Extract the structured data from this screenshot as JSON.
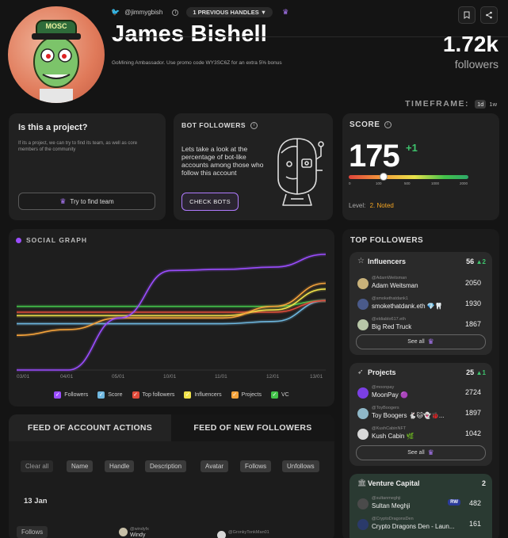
{
  "profile": {
    "handle": "@jimmygbish",
    "prev_handles": "1 PREVIOUS HANDLES ▼",
    "name": "James Bishell",
    "bio": "GoMining Ambassador. Use promo code WY3SC6Z for an extra 5% bonus",
    "followers_count": "1.72k",
    "followers_label": "followers",
    "avatar_text": "MOSC"
  },
  "timeframe": {
    "label": "TIMEFRAME:",
    "options": [
      "1d",
      "1w"
    ]
  },
  "project_card": {
    "title": "Is this a project?",
    "desc": "If its a project, we can try to find its team, as well as core members of the community",
    "button": "Try to find team"
  },
  "bot_card": {
    "title": "BOT FOLLOWERS",
    "desc": "Lets take a look at the percentage of bot-like accounts among those who follow this account",
    "button": "CHECK BOTS"
  },
  "score": {
    "title": "SCORE",
    "value": "175",
    "delta": "+1",
    "ticks": [
      "0",
      "100",
      "500",
      "1000",
      "2000"
    ],
    "level_label": "Level:",
    "level_value": "2. Noted",
    "fraction": 0.29
  },
  "chart_data": {
    "type": "line",
    "title": "SOCIAL GRAPH",
    "x": [
      "03/01",
      "04/01",
      "05/01",
      "10/01",
      "11/01",
      "12/01",
      "13/01"
    ],
    "series": [
      {
        "name": "Followers",
        "color": "#9b4dff",
        "values": [
          0.0,
          0.0,
          0.45,
          0.86,
          0.87,
          0.89,
          1.0
        ]
      },
      {
        "name": "Score",
        "color": "#6fb8e0",
        "values": [
          0.4,
          0.4,
          0.4,
          0.4,
          0.4,
          0.42,
          0.6
        ]
      },
      {
        "name": "Top followers",
        "color": "#e14b3b",
        "values": [
          0.5,
          0.5,
          0.5,
          0.5,
          0.5,
          0.5,
          0.6
        ]
      },
      {
        "name": "Influencers",
        "color": "#f0e24a",
        "values": [
          0.47,
          0.47,
          0.47,
          0.47,
          0.47,
          0.52,
          0.7
        ]
      },
      {
        "name": "Projects",
        "color": "#f5a33b",
        "values": [
          0.3,
          0.35,
          0.45,
          0.45,
          0.45,
          0.55,
          0.75
        ]
      },
      {
        "name": "VC",
        "color": "#43c24a",
        "values": [
          0.55,
          0.55,
          0.55,
          0.55,
          0.55,
          0.55,
          0.6
        ]
      }
    ]
  },
  "feed": {
    "tabs": [
      "FEED OF ACCOUNT ACTIONS",
      "FEED OF NEW FOLLOWERS"
    ],
    "filters": [
      "Clear all",
      "Name",
      "Handle",
      "Description",
      "Avatar",
      "Follows",
      "Unfollows"
    ],
    "date": "13 Jan",
    "row_tag": "Follows",
    "row_items": [
      {
        "handle": "@windyfx",
        "name": "Windy"
      },
      {
        "handle": "@GronkyTonkMan01",
        "name": ""
      }
    ]
  },
  "top_followers": {
    "title": "TOP FOLLOWERS",
    "see_all": "See all",
    "groups": [
      {
        "name": "Influencers",
        "count": "56",
        "delta": "▲2",
        "items": [
          {
            "handle": "@AdamWeitsman",
            "name": "Adam Weitsman",
            "value": "2050",
            "color": "#c9b27a"
          },
          {
            "handle": "@smokethatdank1",
            "name": "smokethatdank.eth 💎🦷",
            "value": "1930",
            "color": "#4a5a8a"
          },
          {
            "handle": "@eldiablo617.eth",
            "name": "Big Red Truck",
            "value": "1867",
            "color": "#b8c7a8"
          }
        ]
      },
      {
        "name": "Projects",
        "count": "25",
        "delta": "▲1",
        "items": [
          {
            "handle": "@moonpay",
            "name": "MoonPay 🟣",
            "value": "2724",
            "color": "#7b3fe4"
          },
          {
            "handle": "@ToyBoogers",
            "name": "Toy Boogers 🐇🐱👻🐞...",
            "value": "1897",
            "color": "#8fb8c8"
          },
          {
            "handle": "@KushCabinNFT",
            "name": "Kush Cabin 🌿",
            "value": "1042",
            "color": "#d8d8d8"
          }
        ]
      },
      {
        "name": "Venture Capital",
        "count": "2",
        "delta": "",
        "items": [
          {
            "handle": "@sultanmeghji",
            "name": "Sultan Meghji",
            "value": "482",
            "color": "#4a4a4a",
            "badge": "RW"
          },
          {
            "handle": "@CryptoDragonsDen",
            "name": "Crypto Dragons Den - Laun...",
            "value": "161",
            "color": "#2a3a6a"
          }
        ]
      }
    ]
  },
  "colors": {
    "accent": "#9b4dff",
    "level": "#f5a623",
    "delta_green": "#3ec46d"
  }
}
